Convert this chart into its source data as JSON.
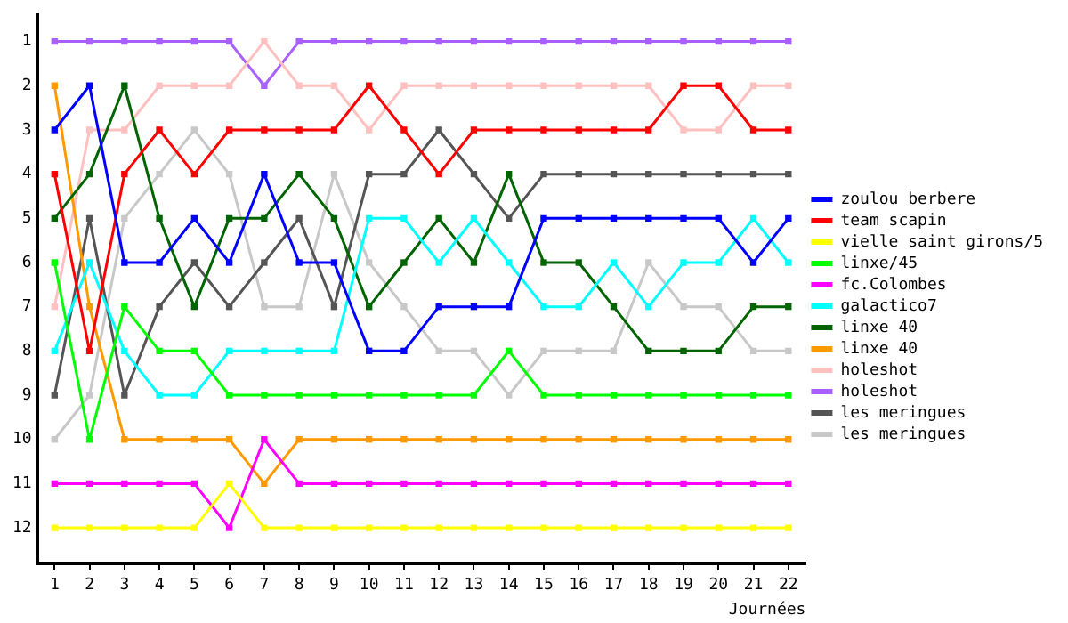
{
  "chart_data": {
    "type": "line",
    "xlabel": "Journées",
    "x": [
      1,
      2,
      3,
      4,
      5,
      6,
      7,
      8,
      9,
      10,
      11,
      12,
      13,
      14,
      15,
      16,
      17,
      18,
      19,
      20,
      21,
      22
    ],
    "xlim": [
      0.5,
      22.5
    ],
    "xticks": [
      1,
      2,
      3,
      4,
      5,
      6,
      7,
      8,
      9,
      10,
      11,
      12,
      13,
      14,
      15,
      16,
      17,
      18,
      19,
      20,
      21,
      22
    ],
    "ylim": [
      12.8,
      0.4
    ],
    "yticks": [
      1,
      2,
      3,
      4,
      5,
      6,
      7,
      8,
      9,
      10,
      11,
      12
    ],
    "grid": false,
    "legend": "right",
    "marker": "square",
    "line_style": "solid",
    "series": [
      {
        "name": "zoulou berbere",
        "color": "#0000ff",
        "values": [
          3,
          2,
          6,
          6,
          5,
          6,
          4,
          6,
          6,
          8,
          8,
          7,
          7,
          7,
          5,
          5,
          5,
          5,
          5,
          5,
          6,
          5
        ]
      },
      {
        "name": "team scapin",
        "color": "#ff0000",
        "values": [
          4,
          8,
          4,
          3,
          4,
          3,
          3,
          3,
          3,
          2,
          3,
          4,
          3,
          3,
          3,
          3,
          3,
          3,
          2,
          2,
          3,
          3
        ]
      },
      {
        "name": "vielle saint girons/5",
        "color": "#ffff00",
        "values": [
          12,
          12,
          12,
          12,
          12,
          11,
          12,
          12,
          12,
          12,
          12,
          12,
          12,
          12,
          12,
          12,
          12,
          12,
          12,
          12,
          12,
          12
        ]
      },
      {
        "name": "linxe/45",
        "color": "#00ff00",
        "values": [
          6,
          10,
          7,
          8,
          8,
          9,
          9,
          9,
          9,
          9,
          9,
          9,
          9,
          8,
          9,
          9,
          9,
          9,
          9,
          9,
          9,
          9
        ]
      },
      {
        "name": "fc.Colombes",
        "color": "#ff00ff",
        "values": [
          11,
          11,
          11,
          11,
          11,
          12,
          10,
          11,
          11,
          11,
          11,
          11,
          11,
          11,
          11,
          11,
          11,
          11,
          11,
          11,
          11,
          11
        ]
      },
      {
        "name": "galactico7",
        "color": "#00ffff",
        "values": [
          8,
          6,
          8,
          9,
          9,
          8,
          8,
          8,
          8,
          5,
          5,
          6,
          5,
          6,
          7,
          7,
          6,
          7,
          6,
          6,
          5,
          6
        ]
      },
      {
        "name": "linxe 40",
        "color": "#006400",
        "values": [
          5,
          4,
          2,
          5,
          7,
          5,
          5,
          4,
          5,
          7,
          6,
          5,
          6,
          4,
          6,
          6,
          7,
          8,
          8,
          8,
          7,
          7
        ]
      },
      {
        "name": "linxe 40",
        "color": "#ff9900",
        "values": [
          2,
          7,
          10,
          10,
          10,
          10,
          11,
          10,
          10,
          10,
          10,
          10,
          10,
          10,
          10,
          10,
          10,
          10,
          10,
          10,
          10,
          10
        ]
      },
      {
        "name": "holeshot",
        "color": "#ffc0c0",
        "values": [
          7,
          3,
          3,
          2,
          2,
          2,
          1,
          2,
          2,
          3,
          2,
          2,
          2,
          2,
          2,
          2,
          2,
          2,
          3,
          3,
          2,
          2
        ]
      },
      {
        "name": "holeshot",
        "color": "#a860ff",
        "values": [
          1,
          1,
          1,
          1,
          1,
          1,
          2,
          1,
          1,
          1,
          1,
          1,
          1,
          1,
          1,
          1,
          1,
          1,
          1,
          1,
          1,
          1
        ]
      },
      {
        "name": "les meringues",
        "color": "#555555",
        "values": [
          9,
          5,
          9,
          7,
          6,
          7,
          6,
          5,
          7,
          4,
          4,
          3,
          4,
          5,
          4,
          4,
          4,
          4,
          4,
          4,
          4,
          4
        ]
      },
      {
        "name": "les meringues",
        "color": "#c8c8c8",
        "values": [
          10,
          9,
          5,
          4,
          3,
          4,
          7,
          7,
          4,
          6,
          7,
          8,
          8,
          9,
          8,
          8,
          8,
          6,
          7,
          7,
          8,
          8
        ]
      }
    ]
  }
}
